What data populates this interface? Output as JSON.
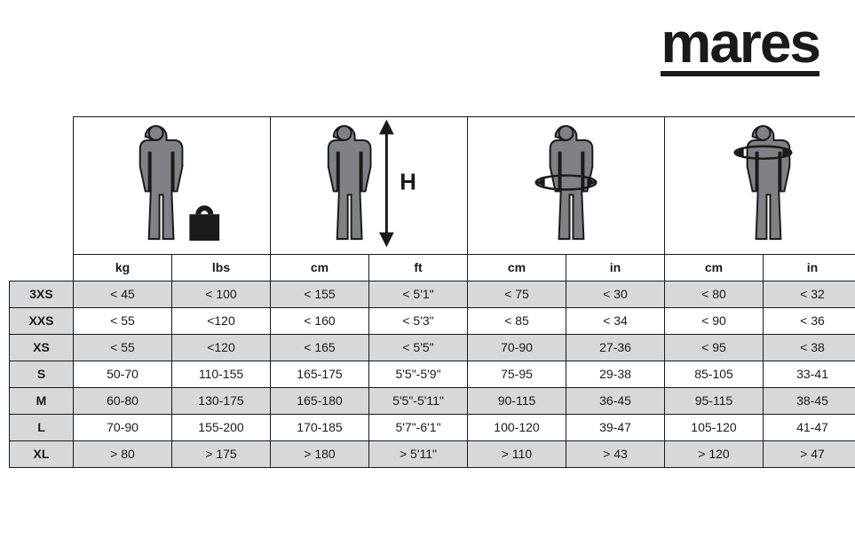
{
  "brand": "mares",
  "colors": {
    "text": "#1a1a1a",
    "shade": "#d7d8da",
    "bg": "#ffffff",
    "figure_body": "#808184",
    "figure_outline": "#1a1a1a"
  },
  "units": {
    "weight": {
      "metric": "kg",
      "imperial": "lbs"
    },
    "height": {
      "metric": "cm",
      "imperial": "ft"
    },
    "waist": {
      "metric": "cm",
      "imperial": "in"
    },
    "chest": {
      "metric": "cm",
      "imperial": "in"
    }
  },
  "height_label": "H",
  "sizes": [
    "3XS",
    "XXS",
    "XS",
    "S",
    "M",
    "L",
    "XL"
  ],
  "rows": [
    {
      "size": "3XS",
      "shaded": true,
      "weight_kg": "< 45",
      "weight_lbs": "< 100",
      "height_cm": "< 155",
      "height_ft": "< 5'1\"",
      "waist_cm": "< 75",
      "waist_in": "< 30",
      "chest_cm": "< 80",
      "chest_in": "< 32"
    },
    {
      "size": "XXS",
      "shaded": false,
      "weight_kg": "< 55",
      "weight_lbs": "<120",
      "height_cm": "< 160",
      "height_ft": "< 5'3\"",
      "waist_cm": "< 85",
      "waist_in": "< 34",
      "chest_cm": "< 90",
      "chest_in": "< 36"
    },
    {
      "size": "XS",
      "shaded": true,
      "weight_kg": "< 55",
      "weight_lbs": "<120",
      "height_cm": "< 165",
      "height_ft": "< 5'5\"",
      "waist_cm": "70-90",
      "waist_in": "27-36",
      "chest_cm": "< 95",
      "chest_in": "< 38"
    },
    {
      "size": "S",
      "shaded": false,
      "weight_kg": "50-70",
      "weight_lbs": "110-155",
      "height_cm": "165-175",
      "height_ft": "5'5\"-5'9\"",
      "waist_cm": "75-95",
      "waist_in": "29-38",
      "chest_cm": "85-105",
      "chest_in": "33-41"
    },
    {
      "size": "M",
      "shaded": true,
      "weight_kg": "60-80",
      "weight_lbs": "130-175",
      "height_cm": "165-180",
      "height_ft": "5'5\"-5'11\"",
      "waist_cm": "90-115",
      "waist_in": "36-45",
      "chest_cm": "95-115",
      "chest_in": "38-45"
    },
    {
      "size": "L",
      "shaded": false,
      "weight_kg": "70-90",
      "weight_lbs": "155-200",
      "height_cm": "170-185",
      "height_ft": "5'7\"-6'1\"",
      "waist_cm": "100-120",
      "waist_in": "39-47",
      "chest_cm": "105-120",
      "chest_in": "41-47"
    },
    {
      "size": "XL",
      "shaded": true,
      "weight_kg": "> 80",
      "weight_lbs": "> 175",
      "height_cm": "> 180",
      "height_ft": "> 5'11\"",
      "waist_cm": "> 110",
      "waist_in": "> 43",
      "chest_cm": "> 120",
      "chest_in": "> 47"
    }
  ]
}
